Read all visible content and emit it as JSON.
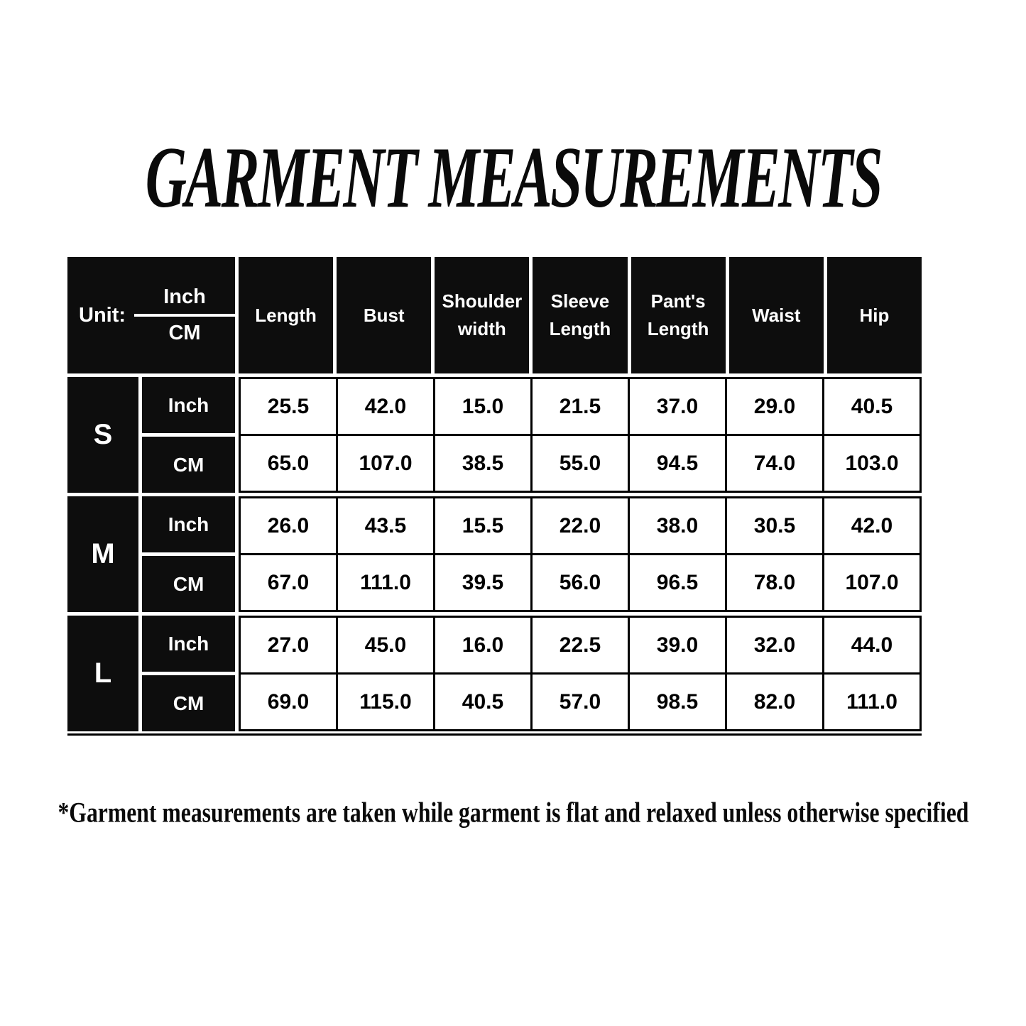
{
  "page": {
    "title": "GARMENT MEASUREMENTS",
    "footnote": "*Garment measurements are taken while garment is flat and relaxed unless otherwise specified"
  },
  "table": {
    "unit_label": "Unit:",
    "unit_inch": "Inch",
    "unit_cm": "CM",
    "columns": [
      "Length",
      "Bust",
      "Shoulder width",
      "Sleeve Length",
      "Pant's Length",
      "Waist",
      "Hip"
    ],
    "groups": [
      {
        "size": "S",
        "row_labels": [
          "Inch",
          "CM"
        ],
        "inch": [
          "25.5",
          "42.0",
          "15.0",
          "21.5",
          "37.0",
          "29.0",
          "40.5"
        ],
        "cm": [
          "65.0",
          "107.0",
          "38.5",
          "55.0",
          "94.5",
          "74.0",
          "103.0"
        ]
      },
      {
        "size": "M",
        "row_labels": [
          "Inch",
          "CM"
        ],
        "inch": [
          "26.0",
          "43.5",
          "15.5",
          "22.0",
          "38.0",
          "30.5",
          "42.0"
        ],
        "cm": [
          "67.0",
          "111.0",
          "39.5",
          "56.0",
          "96.5",
          "78.0",
          "107.0"
        ]
      },
      {
        "size": "L",
        "row_labels": [
          "Inch",
          "CM"
        ],
        "inch": [
          "27.0",
          "45.0",
          "16.0",
          "22.5",
          "39.0",
          "32.0",
          "44.0"
        ],
        "cm": [
          "69.0",
          "115.0",
          "40.5",
          "57.0",
          "98.5",
          "82.0",
          "111.0"
        ]
      }
    ]
  },
  "colors": {
    "page_bg": "#ffffff",
    "cell_bg": "#0d0d0d",
    "text_on_dark": "#ffffff",
    "grid_line": "#000000"
  },
  "chart_data": {
    "type": "table",
    "title": "GARMENT MEASUREMENTS",
    "columns": [
      "Length",
      "Bust",
      "Shoulder width",
      "Sleeve Length",
      "Pant's Length",
      "Waist",
      "Hip"
    ],
    "sizes": [
      "S",
      "M",
      "L"
    ],
    "units": [
      "Inch",
      "CM"
    ],
    "rows": [
      {
        "size": "S",
        "unit": "Inch",
        "values": [
          25.5,
          42.0,
          15.0,
          21.5,
          37.0,
          29.0,
          40.5
        ]
      },
      {
        "size": "S",
        "unit": "CM",
        "values": [
          65.0,
          107.0,
          38.5,
          55.0,
          94.5,
          74.0,
          103.0
        ]
      },
      {
        "size": "M",
        "unit": "Inch",
        "values": [
          26.0,
          43.5,
          15.5,
          22.0,
          38.0,
          30.5,
          42.0
        ]
      },
      {
        "size": "M",
        "unit": "CM",
        "values": [
          67.0,
          111.0,
          39.5,
          56.0,
          96.5,
          78.0,
          107.0
        ]
      },
      {
        "size": "L",
        "unit": "Inch",
        "values": [
          27.0,
          45.0,
          16.0,
          22.5,
          39.0,
          32.0,
          44.0
        ]
      },
      {
        "size": "L",
        "unit": "CM",
        "values": [
          69.0,
          115.0,
          40.5,
          57.0,
          98.5,
          82.0,
          111.0
        ]
      }
    ],
    "footnote": "*Garment measurements are taken while garment is flat and relaxed unless otherwise specified"
  }
}
